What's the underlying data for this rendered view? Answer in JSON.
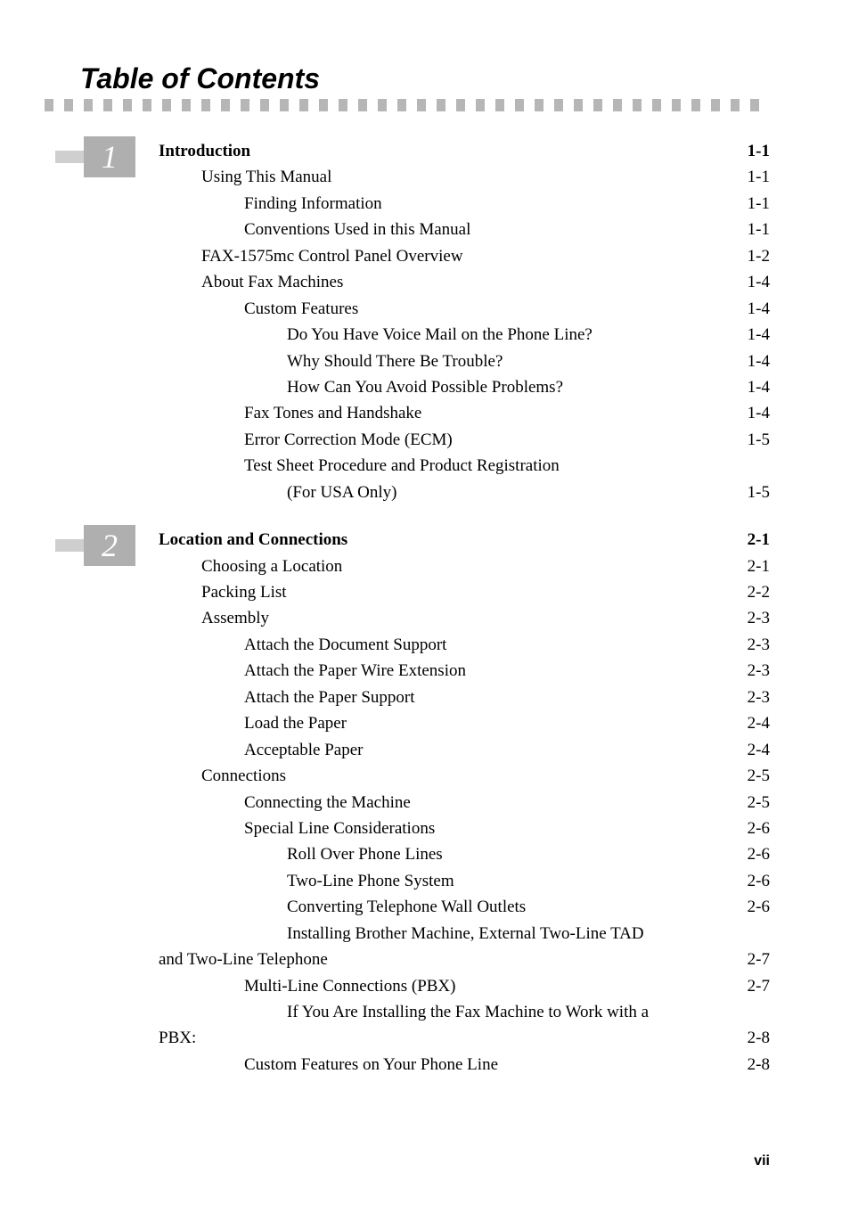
{
  "title": "Table of Contents",
  "page_number": "vii",
  "sections": [
    {
      "num": "1",
      "entries": [
        {
          "label": "Introduction",
          "page": "1-1",
          "indent": 0,
          "bold": true
        },
        {
          "label": "Using This Manual",
          "page": "1-1",
          "indent": 1
        },
        {
          "label": "Finding Information",
          "page": "1-1",
          "indent": 2
        },
        {
          "label": "Conventions Used in this Manual",
          "page": "1-1",
          "indent": 2
        },
        {
          "label": "FAX-1575mc Control Panel Overview",
          "page": "1-2",
          "indent": 1
        },
        {
          "label": "About Fax Machines",
          "page": "1-4",
          "indent": 1
        },
        {
          "label": "Custom Features",
          "page": "1-4",
          "indent": 2
        },
        {
          "label": "Do You Have Voice Mail on the Phone Line?",
          "page": "1-4",
          "indent": 3
        },
        {
          "label": "Why Should There Be Trouble?",
          "page": "1-4",
          "indent": 3
        },
        {
          "label": "How Can You Avoid Possible Problems?",
          "page": "1-4",
          "indent": 3
        },
        {
          "label": "Fax Tones and Handshake",
          "page": "1-4",
          "indent": 2
        },
        {
          "label": "Error Correction Mode (ECM)",
          "page": "1-5",
          "indent": 2
        },
        {
          "label": "Test Sheet Procedure and Product Registration",
          "cont": "(For USA Only)",
          "page": "1-5",
          "indent": 2
        }
      ]
    },
    {
      "num": "2",
      "entries": [
        {
          "label": "Location and Connections",
          "page": "2-1",
          "indent": 0,
          "bold": true
        },
        {
          "label": "Choosing a Location",
          "page": "2-1",
          "indent": 1
        },
        {
          "label": "Packing List",
          "page": "2-2",
          "indent": 1
        },
        {
          "label": "Assembly",
          "page": "2-3",
          "indent": 1
        },
        {
          "label": "Attach the Document Support",
          "page": "2-3",
          "indent": 2
        },
        {
          "label": "Attach the Paper Wire Extension",
          "page": "2-3",
          "indent": 2
        },
        {
          "label": "Attach the Paper Support",
          "page": "2-3",
          "indent": 2
        },
        {
          "label": "Load the Paper",
          "page": "2-4",
          "indent": 2
        },
        {
          "label": "Acceptable Paper",
          "page": "2-4",
          "indent": 2
        },
        {
          "label": "Connections",
          "page": "2-5",
          "indent": 1
        },
        {
          "label": "Connecting the Machine",
          "page": "2-5",
          "indent": 2
        },
        {
          "label": "Special Line Considerations",
          "page": "2-6",
          "indent": 2
        },
        {
          "label": "Roll Over Phone Lines",
          "page": "2-6",
          "indent": 3
        },
        {
          "label": "Two-Line Phone System",
          "page": "2-6",
          "indent": 3
        },
        {
          "label": "Converting Telephone Wall Outlets",
          "page": "2-6",
          "indent": 3
        },
        {
          "label": "Installing Brother Machine, External Two-Line TAD",
          "cont": "and Two-Line Telephone",
          "page": "2-7",
          "indent": 3
        },
        {
          "label": "Multi-Line Connections (PBX)",
          "page": "2-7",
          "indent": 2
        },
        {
          "label": "If You Are Installing the Fax Machine to Work with a",
          "cont": "PBX:",
          "page": "2-8",
          "indent": 3
        },
        {
          "label": "Custom Features on Your Phone Line",
          "page": "2-8",
          "indent": 2
        }
      ]
    }
  ]
}
